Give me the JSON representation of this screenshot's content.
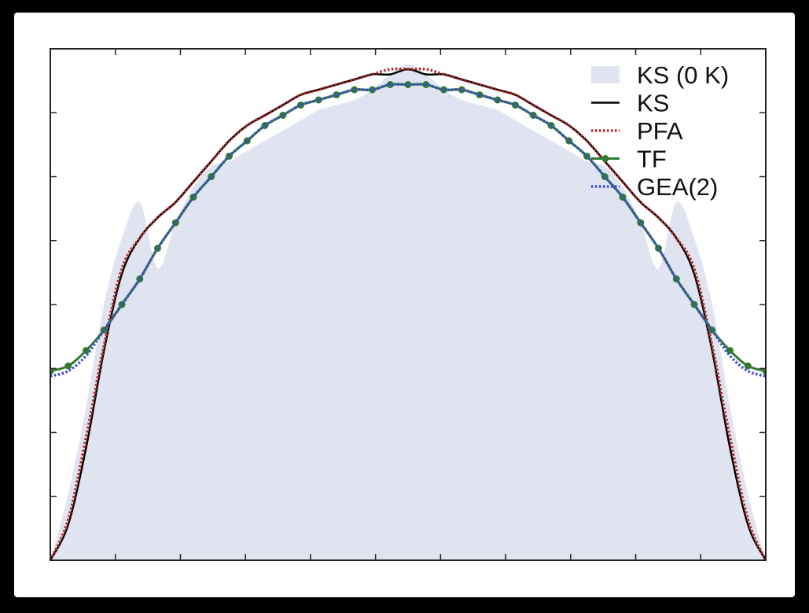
{
  "chart_data": {
    "type": "line",
    "title": "",
    "xlabel": "",
    "ylabel": "",
    "xlim": [
      -1,
      1
    ],
    "ylim": [
      0,
      1
    ],
    "grid": false,
    "legend_position": "top-right",
    "series": [
      {
        "name": "KS (0 K)",
        "style": "filled-area",
        "color": "#dfe4f0",
        "x": [
          -1.0,
          -0.95,
          -0.9,
          -0.85,
          -0.8,
          -0.75,
          -0.7,
          -0.65,
          -0.6,
          -0.55,
          -0.5,
          -0.45,
          -0.4,
          -0.35,
          -0.3,
          -0.25,
          -0.2,
          -0.15,
          -0.1,
          -0.05,
          0.0,
          0.05,
          0.1,
          0.15,
          0.2,
          0.25,
          0.3,
          0.35,
          0.4,
          0.45,
          0.5,
          0.55,
          0.6,
          0.65,
          0.7,
          0.75,
          0.8,
          0.85,
          0.9,
          0.95,
          1.0
        ],
        "values": [
          0.0,
          0.13,
          0.3,
          0.5,
          0.63,
          0.7,
          0.57,
          0.66,
          0.73,
          0.77,
          0.78,
          0.8,
          0.82,
          0.84,
          0.86,
          0.88,
          0.89,
          0.9,
          0.92,
          0.95,
          0.97,
          0.95,
          0.92,
          0.9,
          0.89,
          0.88,
          0.86,
          0.84,
          0.82,
          0.8,
          0.78,
          0.77,
          0.73,
          0.66,
          0.57,
          0.7,
          0.63,
          0.5,
          0.3,
          0.13,
          0.0
        ]
      },
      {
        "name": "KS",
        "style": "solid",
        "color": "#000000",
        "x": [
          -1.0,
          -0.95,
          -0.9,
          -0.85,
          -0.8,
          -0.75,
          -0.7,
          -0.65,
          -0.6,
          -0.55,
          -0.5,
          -0.45,
          -0.4,
          -0.35,
          -0.3,
          -0.25,
          -0.2,
          -0.15,
          -0.1,
          -0.05,
          0.0,
          0.05,
          0.1,
          0.15,
          0.2,
          0.25,
          0.3,
          0.35,
          0.4,
          0.45,
          0.5,
          0.55,
          0.6,
          0.65,
          0.7,
          0.75,
          0.8,
          0.85,
          0.9,
          0.95,
          1.0
        ],
        "values": [
          0.0,
          0.07,
          0.22,
          0.41,
          0.56,
          0.63,
          0.67,
          0.7,
          0.74,
          0.78,
          0.82,
          0.85,
          0.87,
          0.89,
          0.91,
          0.92,
          0.93,
          0.94,
          0.95,
          0.95,
          0.96,
          0.95,
          0.95,
          0.94,
          0.93,
          0.92,
          0.91,
          0.89,
          0.87,
          0.85,
          0.82,
          0.78,
          0.74,
          0.7,
          0.67,
          0.63,
          0.56,
          0.41,
          0.22,
          0.07,
          0.0
        ]
      },
      {
        "name": "PFA",
        "style": "dotted",
        "color": "#b22a2a",
        "x": [
          -1.0,
          -0.95,
          -0.9,
          -0.85,
          -0.8,
          -0.75,
          -0.7,
          -0.65,
          -0.6,
          -0.55,
          -0.5,
          -0.45,
          -0.4,
          -0.35,
          -0.3,
          -0.25,
          -0.2,
          -0.15,
          -0.1,
          -0.05,
          0.0,
          0.05,
          0.1,
          0.15,
          0.2,
          0.25,
          0.3,
          0.35,
          0.4,
          0.45,
          0.5,
          0.55,
          0.6,
          0.65,
          0.7,
          0.75,
          0.8,
          0.85,
          0.9,
          0.95,
          1.0
        ],
        "values": [
          0.0,
          0.08,
          0.24,
          0.42,
          0.57,
          0.63,
          0.67,
          0.7,
          0.74,
          0.78,
          0.82,
          0.85,
          0.87,
          0.89,
          0.91,
          0.92,
          0.93,
          0.94,
          0.95,
          0.96,
          0.96,
          0.96,
          0.95,
          0.94,
          0.93,
          0.92,
          0.91,
          0.89,
          0.87,
          0.85,
          0.82,
          0.78,
          0.74,
          0.7,
          0.67,
          0.63,
          0.57,
          0.42,
          0.24,
          0.08,
          0.0
        ]
      },
      {
        "name": "TF",
        "style": "line-with-dots",
        "color": "#2f7a2f",
        "x": [
          -1.0,
          -0.95,
          -0.9,
          -0.85,
          -0.8,
          -0.75,
          -0.7,
          -0.65,
          -0.6,
          -0.55,
          -0.5,
          -0.45,
          -0.4,
          -0.35,
          -0.3,
          -0.25,
          -0.2,
          -0.15,
          -0.1,
          -0.05,
          0.0,
          0.05,
          0.1,
          0.15,
          0.2,
          0.25,
          0.3,
          0.35,
          0.4,
          0.45,
          0.5,
          0.55,
          0.6,
          0.65,
          0.7,
          0.75,
          0.8,
          0.85,
          0.9,
          0.95,
          1.0
        ],
        "values": [
          0.37,
          0.38,
          0.41,
          0.45,
          0.5,
          0.55,
          0.61,
          0.66,
          0.71,
          0.75,
          0.79,
          0.82,
          0.85,
          0.87,
          0.89,
          0.9,
          0.91,
          0.92,
          0.92,
          0.93,
          0.93,
          0.93,
          0.92,
          0.92,
          0.91,
          0.9,
          0.89,
          0.87,
          0.85,
          0.82,
          0.79,
          0.75,
          0.71,
          0.66,
          0.61,
          0.55,
          0.5,
          0.45,
          0.41,
          0.38,
          0.37
        ]
      },
      {
        "name": "GEA(2)",
        "style": "dotted",
        "color": "#3b4bd8",
        "x": [
          -1.0,
          -0.95,
          -0.9,
          -0.85,
          -0.8,
          -0.75,
          -0.7,
          -0.65,
          -0.6,
          -0.55,
          -0.5,
          -0.45,
          -0.4,
          -0.35,
          -0.3,
          -0.25,
          -0.2,
          -0.15,
          -0.1,
          -0.05,
          0.0,
          0.05,
          0.1,
          0.15,
          0.2,
          0.25,
          0.3,
          0.35,
          0.4,
          0.45,
          0.5,
          0.55,
          0.6,
          0.65,
          0.7,
          0.75,
          0.8,
          0.85,
          0.9,
          0.95,
          1.0
        ],
        "values": [
          0.36,
          0.37,
          0.4,
          0.45,
          0.5,
          0.55,
          0.61,
          0.66,
          0.71,
          0.75,
          0.79,
          0.82,
          0.85,
          0.87,
          0.89,
          0.9,
          0.91,
          0.92,
          0.92,
          0.93,
          0.93,
          0.93,
          0.92,
          0.92,
          0.91,
          0.9,
          0.89,
          0.87,
          0.85,
          0.82,
          0.79,
          0.75,
          0.71,
          0.66,
          0.61,
          0.55,
          0.5,
          0.45,
          0.4,
          0.37,
          0.36
        ]
      }
    ],
    "y_tick_count": 8,
    "x_tick_count": 11
  }
}
